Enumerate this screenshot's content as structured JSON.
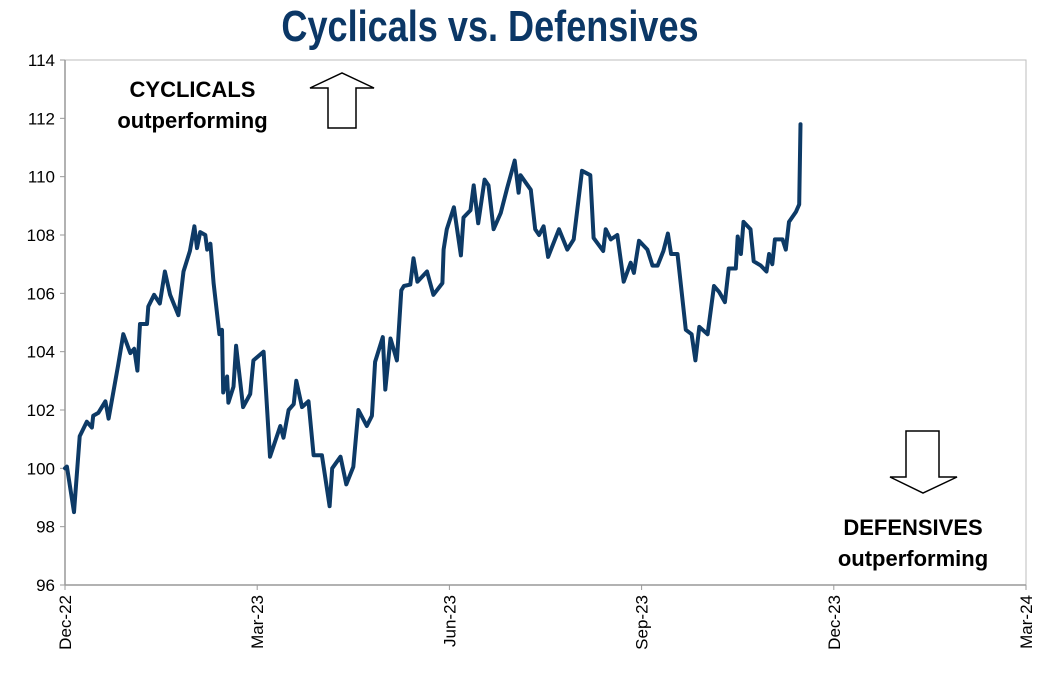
{
  "chart_data": {
    "type": "line",
    "title": "Cyclicals vs. Defensives",
    "xlabel": "",
    "ylabel": "",
    "ylim": [
      96,
      114
    ],
    "yticks": [
      "96",
      "98",
      "100",
      "102",
      "104",
      "106",
      "108",
      "110",
      "112",
      "114"
    ],
    "xticks": [
      "Dec-22",
      "Mar-23",
      "Jun-23",
      "Sep-23",
      "Dec-23",
      "Mar-24"
    ],
    "x_unit": "months since Dec-22",
    "xlim": [
      0,
      15
    ],
    "grid": false,
    "annotations": {
      "top_line1": "CYCLICALS",
      "top_line2": "outperforming",
      "bottom_line1": "DEFENSIVES",
      "bottom_line2": "outperforming"
    },
    "series": [
      {
        "name": "Cyclicals vs. Defensives",
        "color": "#0d3a66",
        "points": [
          [
            0,
            100
          ],
          [
            0.03,
            100.06
          ],
          [
            0.14,
            98.5
          ],
          [
            0.23,
            101.1
          ],
          [
            0.34,
            101.6
          ],
          [
            0.42,
            101.4
          ],
          [
            0.44,
            101.8
          ],
          [
            0.52,
            101.9
          ],
          [
            0.63,
            102.3
          ],
          [
            0.68,
            101.7
          ],
          [
            0.83,
            103.55
          ],
          [
            0.91,
            104.6
          ],
          [
            1.02,
            103.95
          ],
          [
            1.08,
            104.1
          ],
          [
            1.13,
            103.35
          ],
          [
            1.17,
            104.95
          ],
          [
            1.28,
            104.95
          ],
          [
            1.3,
            105.55
          ],
          [
            1.39,
            105.95
          ],
          [
            1.48,
            105.65
          ],
          [
            1.56,
            106.75
          ],
          [
            1.64,
            105.95
          ],
          [
            1.77,
            105.25
          ],
          [
            1.85,
            106.75
          ],
          [
            1.95,
            107.45
          ],
          [
            2.02,
            108.3
          ],
          [
            2.06,
            107.55
          ],
          [
            2.11,
            108.1
          ],
          [
            2.19,
            108.0
          ],
          [
            2.22,
            107.5
          ],
          [
            2.27,
            107.7
          ],
          [
            2.32,
            106.35
          ],
          [
            2.41,
            104.6
          ],
          [
            2.45,
            104.75
          ],
          [
            2.47,
            102.6
          ],
          [
            2.53,
            103.15
          ],
          [
            2.55,
            102.25
          ],
          [
            2.63,
            102.8
          ],
          [
            2.67,
            104.2
          ],
          [
            2.78,
            102.1
          ],
          [
            2.89,
            102.55
          ],
          [
            2.94,
            103.7
          ],
          [
            3.1,
            104.0
          ],
          [
            3.2,
            100.4
          ],
          [
            3.36,
            101.45
          ],
          [
            3.41,
            101.05
          ],
          [
            3.49,
            102.0
          ],
          [
            3.57,
            102.2
          ],
          [
            3.61,
            103.0
          ],
          [
            3.7,
            102.1
          ],
          [
            3.8,
            102.3
          ],
          [
            3.88,
            100.45
          ],
          [
            4.01,
            100.45
          ],
          [
            4.13,
            98.7
          ],
          [
            4.17,
            100.0
          ],
          [
            4.3,
            100.4
          ],
          [
            4.39,
            99.45
          ],
          [
            4.5,
            100.05
          ],
          [
            4.58,
            102.0
          ],
          [
            4.71,
            101.45
          ],
          [
            4.79,
            101.8
          ],
          [
            4.84,
            103.65
          ],
          [
            4.96,
            104.5
          ],
          [
            5.0,
            102.7
          ],
          [
            5.08,
            104.45
          ],
          [
            5.18,
            103.7
          ],
          [
            5.25,
            106.1
          ],
          [
            5.29,
            106.25
          ],
          [
            5.39,
            106.3
          ],
          [
            5.44,
            107.2
          ],
          [
            5.5,
            106.4
          ],
          [
            5.65,
            106.75
          ],
          [
            5.75,
            105.95
          ],
          [
            5.89,
            106.35
          ],
          [
            5.91,
            107.5
          ],
          [
            5.96,
            108.2
          ],
          [
            6.07,
            108.95
          ],
          [
            6.18,
            107.3
          ],
          [
            6.22,
            108.6
          ],
          [
            6.33,
            108.85
          ],
          [
            6.38,
            109.7
          ],
          [
            6.45,
            108.4
          ],
          [
            6.55,
            109.9
          ],
          [
            6.61,
            109.7
          ],
          [
            6.69,
            108.2
          ],
          [
            6.8,
            108.75
          ],
          [
            6.9,
            109.6
          ],
          [
            7.02,
            110.55
          ],
          [
            7.08,
            109.45
          ],
          [
            7.11,
            110.05
          ],
          [
            7.27,
            109.55
          ],
          [
            7.34,
            108.2
          ],
          [
            7.4,
            108.0
          ],
          [
            7.47,
            108.3
          ],
          [
            7.54,
            107.25
          ],
          [
            7.71,
            108.2
          ],
          [
            7.84,
            107.5
          ],
          [
            7.94,
            107.85
          ],
          [
            8.07,
            110.2
          ],
          [
            8.2,
            110.05
          ],
          [
            8.25,
            107.9
          ],
          [
            8.4,
            107.45
          ],
          [
            8.44,
            108.2
          ],
          [
            8.52,
            107.85
          ],
          [
            8.62,
            108.0
          ],
          [
            8.72,
            106.4
          ],
          [
            8.83,
            107.05
          ],
          [
            8.88,
            106.7
          ],
          [
            8.96,
            107.8
          ],
          [
            9.09,
            107.5
          ],
          [
            9.17,
            106.95
          ],
          [
            9.25,
            106.95
          ],
          [
            9.34,
            107.45
          ],
          [
            9.41,
            108.05
          ],
          [
            9.46,
            107.35
          ],
          [
            9.56,
            107.35
          ],
          [
            9.69,
            104.75
          ],
          [
            9.78,
            104.6
          ],
          [
            9.84,
            103.7
          ],
          [
            9.9,
            104.85
          ],
          [
            10.03,
            104.6
          ],
          [
            10.13,
            106.25
          ],
          [
            10.21,
            106.05
          ],
          [
            10.3,
            105.7
          ],
          [
            10.36,
            106.85
          ],
          [
            10.47,
            106.85
          ],
          [
            10.5,
            107.95
          ],
          [
            10.55,
            107.35
          ],
          [
            10.59,
            108.45
          ],
          [
            10.7,
            108.2
          ],
          [
            10.75,
            107.1
          ],
          [
            10.86,
            106.95
          ],
          [
            10.95,
            106.75
          ],
          [
            10.99,
            107.35
          ],
          [
            11.04,
            107.0
          ],
          [
            11.08,
            107.85
          ],
          [
            11.2,
            107.85
          ],
          [
            11.25,
            107.5
          ],
          [
            11.3,
            108.45
          ],
          [
            11.41,
            108.8
          ],
          [
            11.46,
            109.05
          ],
          [
            11.48,
            111.8
          ]
        ]
      }
    ]
  }
}
